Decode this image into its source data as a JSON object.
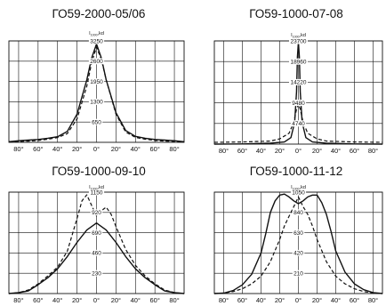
{
  "chart_data": [
    {
      "type": "line",
      "title": "ГО59-2000-05/06",
      "ylabel": "I",
      "ylabel_sub": "1000",
      "ylabel_unit": "kd",
      "y_ticks": [
        650,
        1300,
        1950,
        2600,
        3250
      ],
      "ylim": [
        0,
        3250
      ],
      "x_ticks": [
        -80,
        -60,
        -40,
        -20,
        0,
        20,
        40,
        60,
        80
      ],
      "x_tick_labels": [
        "80°",
        "60°",
        "40°",
        "20°",
        "0°",
        "20°",
        "40°",
        "60°",
        "80°"
      ],
      "xlim": [
        -90,
        90
      ],
      "series": [
        {
          "style": "solid",
          "x": [
            -90,
            -80,
            -70,
            -60,
            -50,
            -40,
            -30,
            -20,
            -10,
            -5,
            0,
            5,
            10,
            20,
            30,
            40,
            50,
            60,
            70,
            80,
            90
          ],
          "values": [
            20,
            50,
            70,
            90,
            130,
            180,
            350,
            900,
            2000,
            2700,
            3150,
            2700,
            2000,
            950,
            380,
            190,
            130,
            90,
            70,
            50,
            20
          ]
        },
        {
          "style": "dashed",
          "x": [
            -90,
            -80,
            -70,
            -60,
            -50,
            -40,
            -30,
            -20,
            -10,
            -5,
            0,
            5,
            10,
            20,
            30,
            40,
            50,
            60,
            70,
            80,
            90
          ],
          "values": [
            10,
            30,
            40,
            60,
            100,
            150,
            280,
            750,
            1800,
            2550,
            3050,
            2650,
            2000,
            900,
            330,
            160,
            100,
            60,
            40,
            30,
            10
          ]
        }
      ]
    },
    {
      "type": "line",
      "title": "ГО59-1000-07-08",
      "ylabel": "I",
      "ylabel_sub": "1000",
      "ylabel_unit": "kd",
      "y_ticks": [
        4740,
        9480,
        14220,
        18960,
        23700
      ],
      "ylim": [
        0,
        23700
      ],
      "x_ticks": [
        -80,
        -60,
        -40,
        -20,
        0,
        20,
        40,
        60,
        80
      ],
      "x_tick_labels": [
        "80°",
        "60°",
        "40°",
        "20°",
        "0°",
        "20°",
        "40°",
        "60°",
        "80°"
      ],
      "xlim": [
        -90,
        90
      ],
      "series": [
        {
          "style": "solid",
          "x": [
            -90,
            -60,
            -30,
            -15,
            -8,
            -4,
            -2,
            -1,
            0,
            1,
            2,
            4,
            8,
            15,
            30,
            60,
            90
          ],
          "values": [
            0,
            50,
            200,
            500,
            1500,
            5000,
            12000,
            20000,
            23500,
            20000,
            12000,
            5000,
            1500,
            500,
            200,
            50,
            0
          ]
        },
        {
          "style": "dashed",
          "x": [
            -90,
            -60,
            -30,
            -20,
            -10,
            -5,
            -2,
            0,
            2,
            5,
            10,
            20,
            30,
            60,
            90
          ],
          "values": [
            400,
            500,
            700,
            1200,
            2500,
            5000,
            8000,
            9200,
            8000,
            5000,
            2500,
            1200,
            700,
            500,
            400
          ]
        }
      ]
    },
    {
      "type": "line",
      "title": "ГО59-1000-09-10",
      "ylabel": "I",
      "ylabel_sub": "1000",
      "ylabel_unit": "kd",
      "y_ticks": [
        230,
        460,
        690,
        920,
        1150
      ],
      "ylim": [
        0,
        1150
      ],
      "x_ticks": [
        -80,
        -60,
        -40,
        -20,
        0,
        20,
        40,
        60,
        80
      ],
      "x_tick_labels": [
        "80°",
        "60°",
        "40°",
        "20°",
        "0°",
        "20°",
        "40°",
        "60°",
        "80°"
      ],
      "xlim": [
        -90,
        90
      ],
      "series": [
        {
          "style": "solid",
          "x": [
            -90,
            -80,
            -70,
            -60,
            -50,
            -40,
            -30,
            -20,
            -10,
            0,
            10,
            20,
            30,
            40,
            50,
            60,
            70,
            80,
            90
          ],
          "values": [
            0,
            10,
            30,
            100,
            180,
            280,
            420,
            580,
            720,
            800,
            720,
            580,
            420,
            280,
            180,
            100,
            30,
            10,
            0
          ]
        },
        {
          "style": "dashed",
          "x": [
            -90,
            -80,
            -70,
            -60,
            -50,
            -40,
            -30,
            -20,
            -15,
            -10,
            -5,
            0,
            5,
            10,
            15,
            20,
            30,
            40,
            50,
            60,
            70,
            80,
            90
          ],
          "values": [
            0,
            10,
            40,
            110,
            200,
            300,
            480,
            850,
            1050,
            1120,
            1000,
            880,
            940,
            980,
            900,
            760,
            500,
            320,
            200,
            110,
            40,
            10,
            0
          ]
        }
      ]
    },
    {
      "type": "line",
      "title": "ГО59-1000-11-12",
      "ylabel": "I",
      "ylabel_sub": "1000",
      "ylabel_unit": "kd",
      "y_ticks": [
        210,
        420,
        630,
        840,
        1050
      ],
      "ylim": [
        0,
        1050
      ],
      "x_ticks": [
        -80,
        -60,
        -40,
        -20,
        0,
        20,
        40,
        60,
        80
      ],
      "x_tick_labels": [
        "80°",
        "60°",
        "40°",
        "20°",
        "0°",
        "20°",
        "40°",
        "60°",
        "80°"
      ],
      "xlim": [
        -90,
        90
      ],
      "series": [
        {
          "style": "solid",
          "x": [
            -90,
            -80,
            -70,
            -60,
            -50,
            -40,
            -35,
            -30,
            -25,
            -20,
            -15,
            -10,
            -5,
            0,
            5,
            10,
            15,
            20,
            25,
            30,
            35,
            40,
            50,
            60,
            70,
            80,
            90
          ],
          "values": [
            0,
            5,
            30,
            90,
            200,
            420,
            620,
            840,
            960,
            1020,
            1030,
            1000,
            960,
            930,
            960,
            1000,
            1020,
            1020,
            940,
            820,
            640,
            440,
            220,
            100,
            40,
            10,
            0
          ]
        },
        {
          "style": "dashed",
          "x": [
            -90,
            -80,
            -70,
            -60,
            -50,
            -40,
            -30,
            -20,
            -15,
            -10,
            -5,
            0,
            5,
            10,
            15,
            20,
            30,
            40,
            50,
            60,
            70,
            80,
            90
          ],
          "values": [
            0,
            5,
            20,
            50,
            100,
            180,
            330,
            560,
            700,
            800,
            900,
            1000,
            900,
            820,
            700,
            560,
            330,
            180,
            100,
            50,
            20,
            5,
            0
          ]
        }
      ]
    }
  ]
}
